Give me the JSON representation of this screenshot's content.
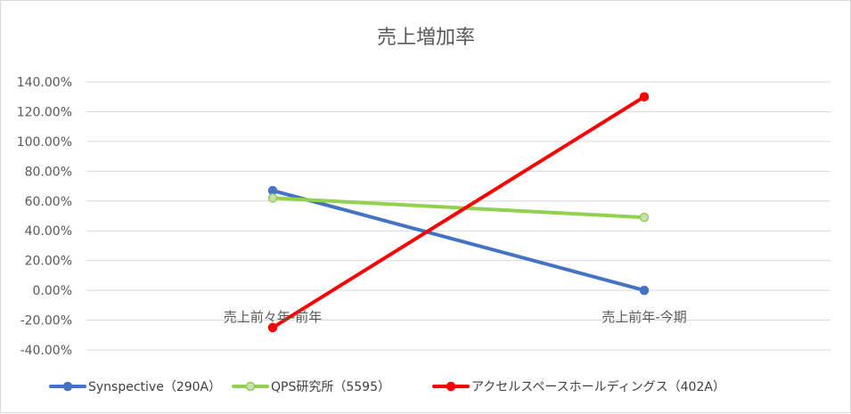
{
  "chart_data": {
    "type": "line",
    "title": "売上増加率",
    "categories": [
      "売上前々年-前年",
      "売上前年-今期"
    ],
    "ylim": [
      -0.4,
      1.4
    ],
    "ytick_step": 0.2,
    "ytick_labels": [
      "140.00%",
      "120.00%",
      "100.00%",
      "80.00%",
      "60.00%",
      "40.00%",
      "20.00%",
      "0.00%",
      "-20.00%",
      "-40.00%"
    ],
    "grid": true,
    "legend_position": "bottom",
    "series": [
      {
        "name": "Synspective（290A）",
        "color": "#4472c4",
        "marker_fill": "#4472c4",
        "values": [
          0.67,
          0.0
        ]
      },
      {
        "name": "QPS研究所（5595）",
        "color": "#92d050",
        "marker_fill": "#c5e0b4",
        "values": [
          0.62,
          0.49
        ]
      },
      {
        "name": "アクセルスペースホールディングス（402A）",
        "color": "#ff0000",
        "marker_fill": "#ff0000",
        "values": [
          -0.25,
          1.3
        ]
      }
    ]
  }
}
